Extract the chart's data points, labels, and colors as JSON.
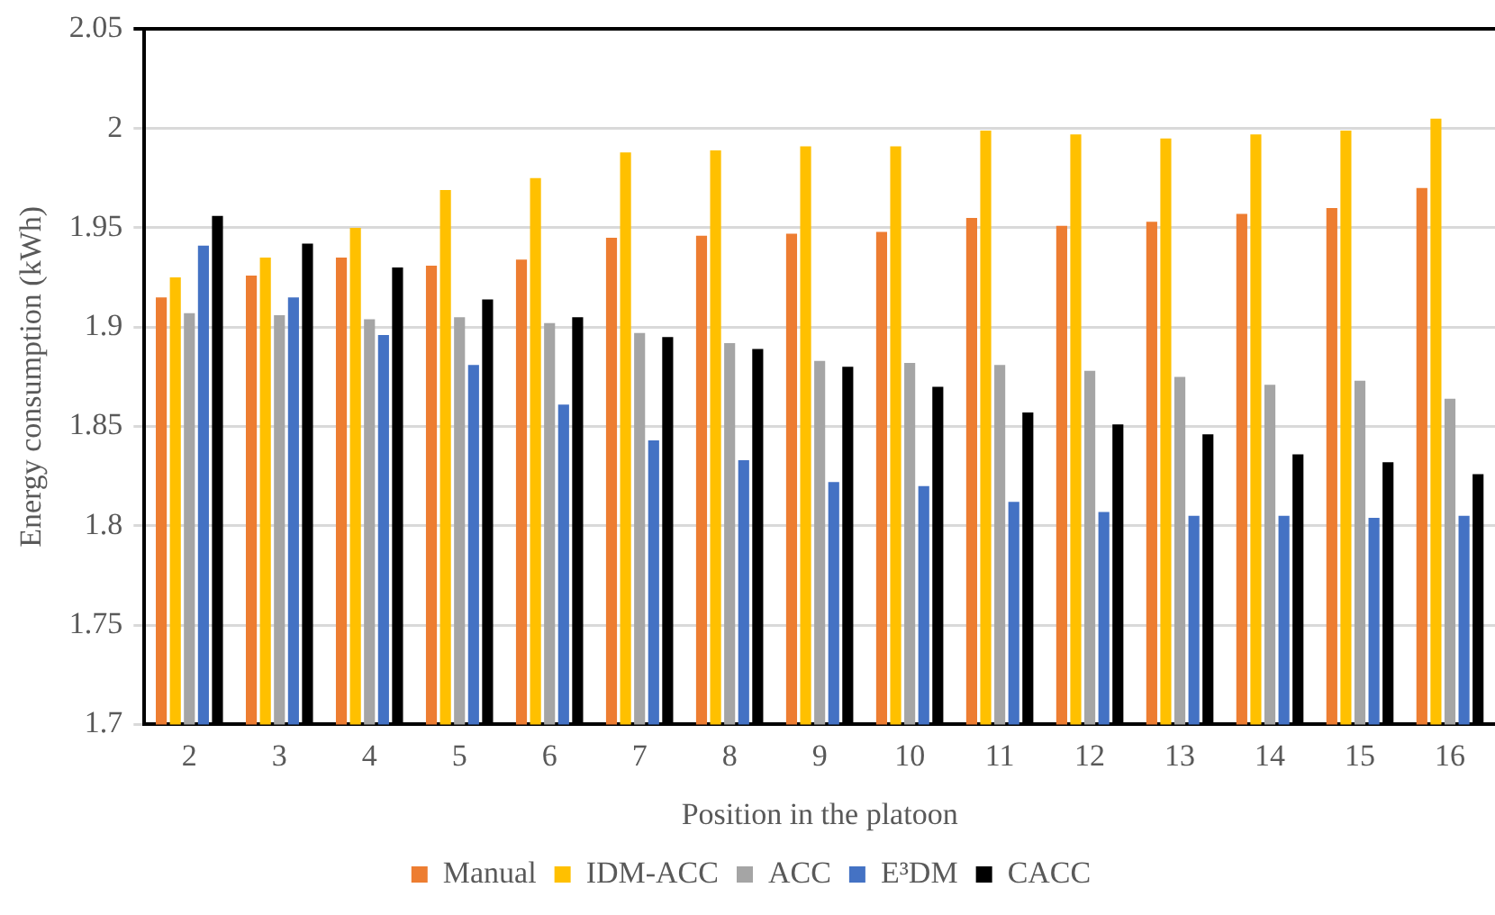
{
  "chart_data": {
    "type": "bar",
    "xlabel": "Position in the platoon",
    "ylabel": "Energy consumption (kWh)",
    "categories": [
      "2",
      "3",
      "4",
      "5",
      "6",
      "7",
      "8",
      "9",
      "10",
      "11",
      "12",
      "13",
      "14",
      "15",
      "16"
    ],
    "series": [
      {
        "name": "Manual",
        "color": "#ed7d31",
        "values": [
          1.915,
          1.926,
          1.935,
          1.931,
          1.934,
          1.945,
          1.946,
          1.947,
          1.948,
          1.955,
          1.951,
          1.953,
          1.957,
          1.96,
          1.97
        ]
      },
      {
        "name": "IDM-ACC",
        "color": "#ffc000",
        "values": [
          1.925,
          1.935,
          1.95,
          1.969,
          1.975,
          1.988,
          1.989,
          1.991,
          1.991,
          1.999,
          1.997,
          1.995,
          1.997,
          1.999,
          2.005
        ]
      },
      {
        "name": "ACC",
        "color": "#a5a5a5",
        "values": [
          1.907,
          1.906,
          1.904,
          1.905,
          1.902,
          1.897,
          1.892,
          1.883,
          1.882,
          1.881,
          1.878,
          1.875,
          1.871,
          1.873,
          1.864
        ]
      },
      {
        "name": "E³DM",
        "color": "#4472c4",
        "values": [
          1.941,
          1.915,
          1.896,
          1.881,
          1.861,
          1.843,
          1.833,
          1.822,
          1.82,
          1.812,
          1.807,
          1.805,
          1.805,
          1.804,
          1.805
        ]
      },
      {
        "name": "CACC",
        "color": "#000000",
        "values": [
          1.956,
          1.942,
          1.93,
          1.914,
          1.905,
          1.895,
          1.889,
          1.88,
          1.87,
          1.857,
          1.851,
          1.846,
          1.836,
          1.832,
          1.826
        ]
      }
    ],
    "ylim": [
      1.7,
      2.05
    ],
    "yticks": [
      1.7,
      1.75,
      1.8,
      1.85,
      1.9,
      1.95,
      2,
      2.05
    ],
    "grid": "y",
    "legend": "bottom"
  }
}
